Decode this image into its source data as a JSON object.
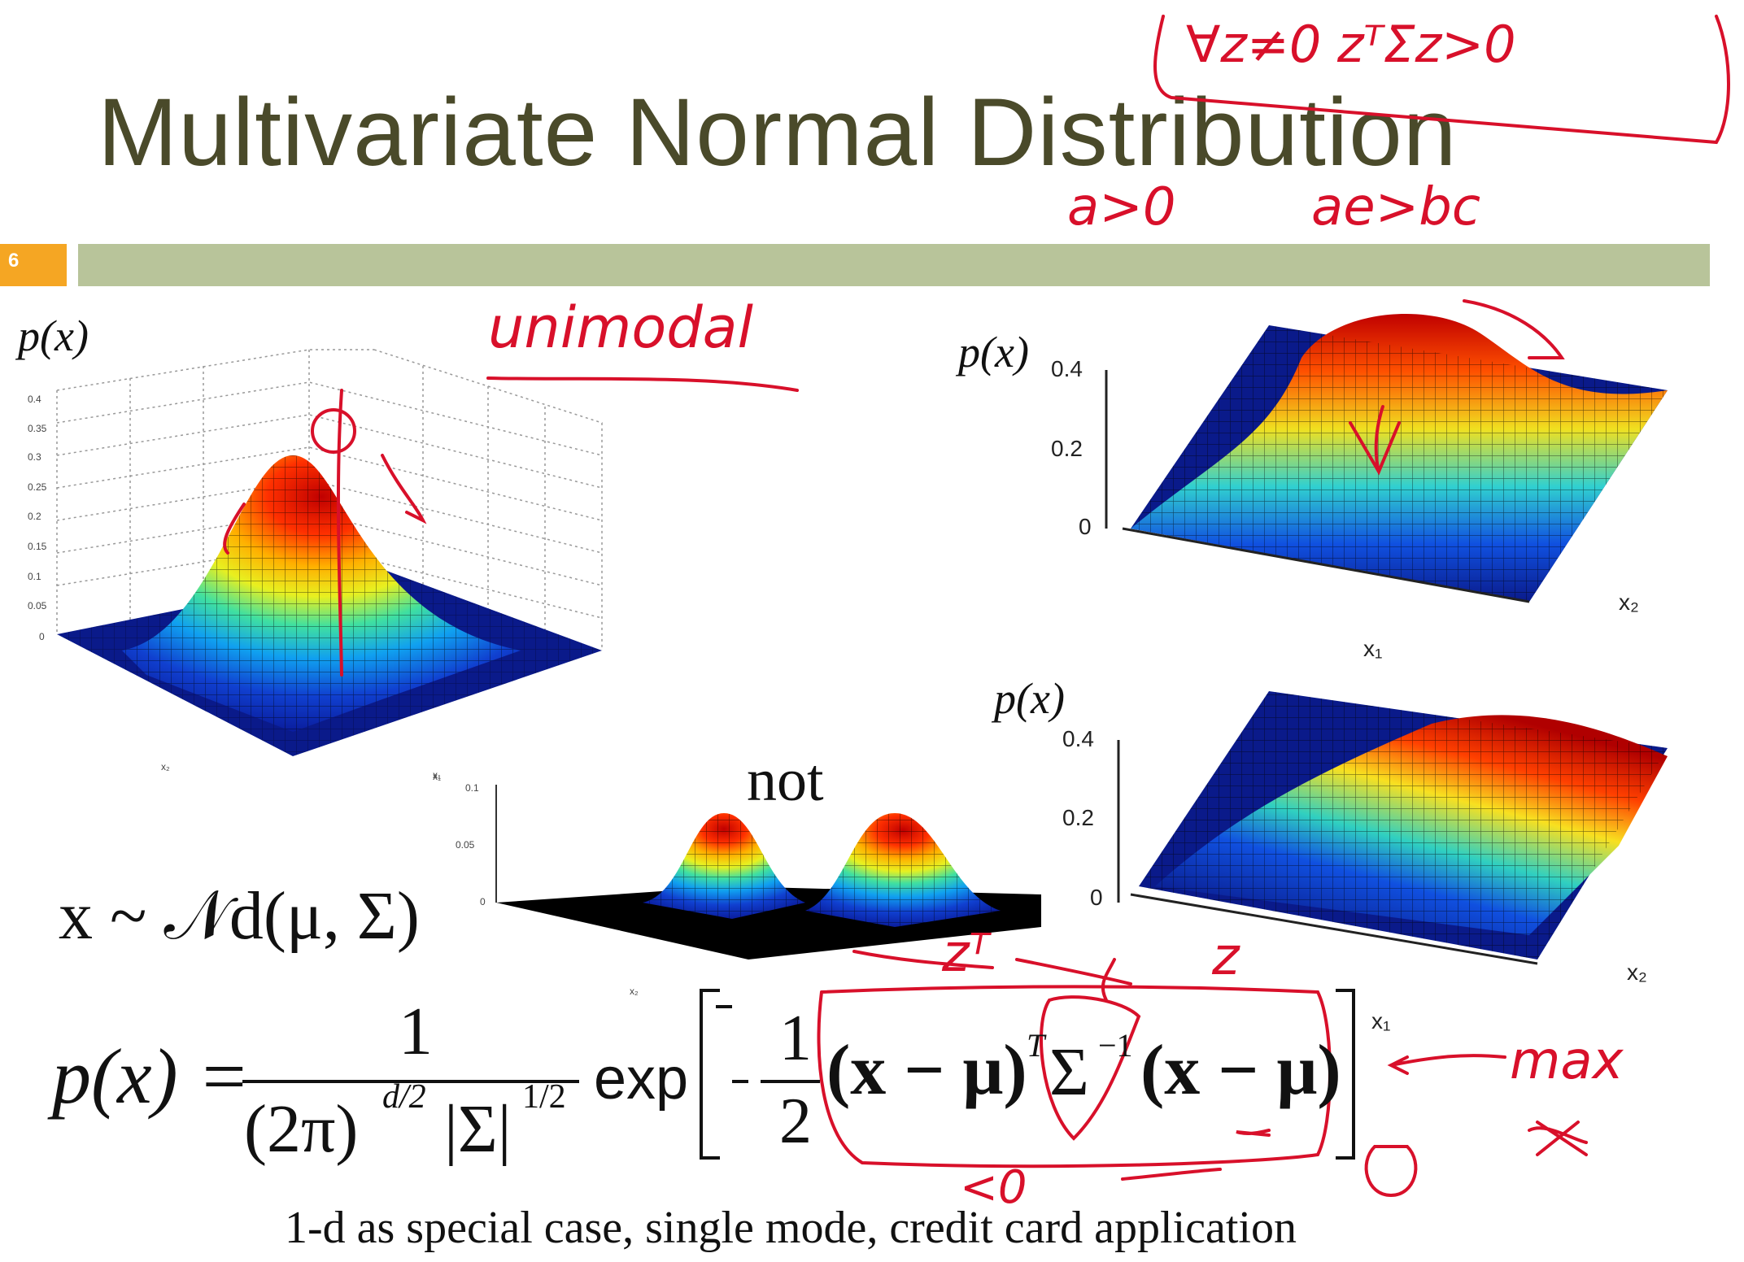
{
  "slide": {
    "title": "Multivariate Normal Distribution",
    "number": "6",
    "title_color": "#4a4a2a",
    "bar_color": "#b8c49a",
    "number_box_color": "#f5a623"
  },
  "plots": {
    "top_left": {
      "ylabel": "p(x)",
      "ticks": [
        "0.4",
        "0.35",
        "0.3",
        "0.25",
        "0.2",
        "0.15",
        "0.1",
        "0.05",
        "0"
      ],
      "xlabel_small": "x₂",
      "ylabel_small": "x₁"
    },
    "top_right": {
      "ylabel": "p(x)",
      "ticks": [
        "0.4",
        "0.2",
        "0"
      ],
      "xlabel": "x₁",
      "x2label": "x₂"
    },
    "bottom_right": {
      "ylabel": "p(x)",
      "ticks": [
        "0.4",
        "0.2",
        "0"
      ],
      "xlabel": "x₁",
      "x2label": "x₂"
    },
    "bimodal": {
      "ticks": [
        "0.1",
        "0.05",
        "0"
      ],
      "label": "not",
      "xlabel_small": "x₂",
      "ylabel_small": "x₁"
    }
  },
  "notation": "x ~ 𝒩d(μ, Σ)",
  "formula": {
    "lhs": "p(x) =",
    "numerator": "1",
    "denominator_left": "(2π)",
    "denominator_exp": "d/2",
    "denominator_sigma": "|Σ|",
    "denominator_sigma_exp": "1/2",
    "exp": "exp",
    "half_num": "1",
    "half_den": "2",
    "quad_1": "(x − μ)",
    "quad_T": "T",
    "quad_sigma": "Σ",
    "quad_inv": "−1",
    "quad_2": "(x − μ)"
  },
  "caption": "1-d as special case, single mode, credit card application",
  "annotations": {
    "top_box": "∀z≠0   zᵀΣz>0",
    "a_gt_0": "a>0",
    "ae_gt_bc": "ae>bc",
    "unimodal": "unimodal",
    "zT": "zᵀ",
    "z": "z",
    "lt0": "<0",
    "max": "max"
  },
  "colors": {
    "ink": "#d8102a",
    "surface_low": "#0a1a8a",
    "surface_high": "#c81010"
  }
}
